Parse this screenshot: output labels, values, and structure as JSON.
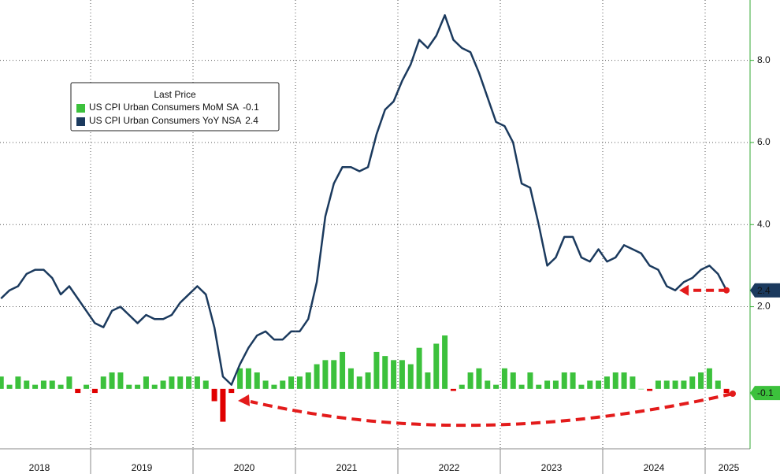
{
  "chart_data": {
    "type": "bar-line",
    "legend_title": "Last Price",
    "years": [
      "2018",
      "2019",
      "2020",
      "2021",
      "2022",
      "2023",
      "2024",
      "2025"
    ],
    "ylim": [
      -1.46,
      9.47
    ],
    "yticks": [
      {
        "value": 2,
        "label": "2.0"
      },
      {
        "value": 4,
        "label": "4.0"
      },
      {
        "value": 6,
        "label": "6.0"
      },
      {
        "value": 8,
        "label": "8.0"
      }
    ],
    "grid": true,
    "series": [
      {
        "name": "US CPI Urban Consumers MoM SA",
        "type": "bar",
        "color": "#3cc13c",
        "negative_color": "#e00000",
        "last_label": "-0.1",
        "values": [
          0.3,
          0.1,
          0.3,
          0.2,
          0.1,
          0.2,
          0.2,
          0.1,
          0.3,
          -0.1,
          0.1,
          -0.1,
          0.3,
          0.4,
          0.4,
          0.1,
          0.1,
          0.3,
          0.1,
          0.2,
          0.3,
          0.3,
          0.3,
          0.3,
          0.2,
          -0.3,
          -0.8,
          -0.1,
          0.5,
          0.5,
          0.4,
          0.2,
          0.1,
          0.2,
          0.3,
          0.3,
          0.4,
          0.6,
          0.7,
          0.7,
          0.9,
          0.5,
          0.3,
          0.4,
          0.9,
          0.8,
          0.7,
          0.7,
          0.6,
          1.0,
          0.4,
          1.1,
          1.3,
          -0.05,
          0.1,
          0.4,
          0.5,
          0.2,
          0.1,
          0.5,
          0.4,
          0.1,
          0.4,
          0.1,
          0.2,
          0.2,
          0.4,
          0.4,
          0.1,
          0.2,
          0.2,
          0.3,
          0.4,
          0.4,
          0.3,
          0.0,
          -0.05,
          0.2,
          0.2,
          0.2,
          0.2,
          0.3,
          0.4,
          0.5,
          0.2,
          -0.1
        ]
      },
      {
        "name": "US CPI Urban Consumers YoY NSA",
        "type": "line",
        "color": "#1b3a5e",
        "last_label": "2.4",
        "values": [
          2.2,
          2.4,
          2.5,
          2.8,
          2.9,
          2.9,
          2.7,
          2.3,
          2.5,
          2.2,
          1.9,
          1.6,
          1.5,
          1.9,
          2.0,
          1.8,
          1.6,
          1.8,
          1.7,
          1.7,
          1.8,
          2.1,
          2.3,
          2.5,
          2.3,
          1.5,
          0.3,
          0.1,
          0.6,
          1.0,
          1.3,
          1.4,
          1.2,
          1.2,
          1.4,
          1.4,
          1.7,
          2.6,
          4.2,
          5.0,
          5.4,
          5.4,
          5.3,
          5.4,
          6.2,
          6.8,
          7.0,
          7.5,
          7.9,
          8.5,
          8.3,
          8.6,
          9.1,
          8.5,
          8.3,
          8.2,
          7.7,
          7.1,
          6.5,
          6.4,
          6.0,
          5.0,
          4.9,
          4.0,
          3.0,
          3.2,
          3.7,
          3.7,
          3.2,
          3.1,
          3.4,
          3.1,
          3.2,
          3.5,
          3.4,
          3.3,
          3.0,
          2.9,
          2.5,
          2.4,
          2.6,
          2.7,
          2.9,
          3.0,
          2.8,
          2.4
        ]
      }
    ]
  }
}
